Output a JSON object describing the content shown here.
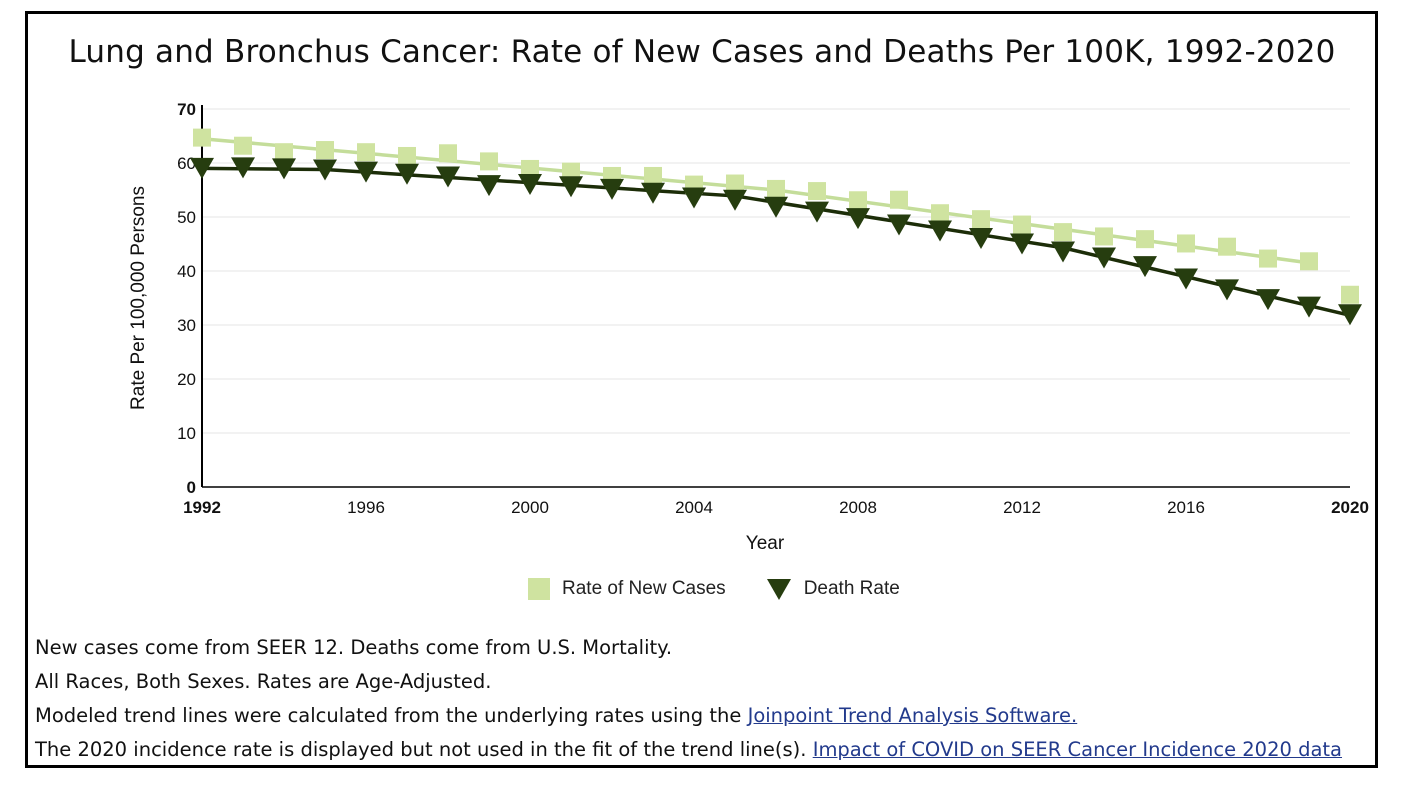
{
  "title": "Lung and Bronchus Cancer: Rate of New Cases and Deaths Per 100K, 1992-2020",
  "legend": {
    "new_cases": "Rate of New Cases",
    "deaths": "Death Rate"
  },
  "notes": [
    "New cases come from SEER 12. Deaths come from U.S. Mortality.",
    "All Races, Both Sexes. Rates are Age-Adjusted."
  ],
  "note3": {
    "text": "Modeled trend lines were calculated from the underlying rates using the ",
    "link": "Joinpoint Trend Analysis Software."
  },
  "note4": {
    "text": "The 2020 incidence rate is displayed but not used in the fit of the trend line(s). ",
    "link": "Impact of COVID on SEER Cancer Incidence 2020 data"
  },
  "colors": {
    "new_cases": "#cfe3a0",
    "new_cases_line": "#c4dd9a",
    "deaths": "#263d0f",
    "deaths_line": "#1c2d08",
    "axis": "#000000",
    "grid": "#e6e6e6"
  },
  "chart_data": {
    "type": "line",
    "xlabel": "Year",
    "ylabel": "Rate Per 100,000 Persons",
    "ylim": [
      0,
      70
    ],
    "xlim": [
      1992,
      2020
    ],
    "yticks": [
      0,
      10,
      20,
      30,
      40,
      50,
      60,
      70
    ],
    "xticks": [
      1992,
      1996,
      2000,
      2004,
      2008,
      2012,
      2016,
      2020
    ],
    "bold_ticks": [
      "0",
      "70",
      "1992",
      "2020"
    ],
    "grid": true,
    "legend_position": "bottom",
    "x": [
      1992,
      1993,
      1994,
      1995,
      1996,
      1997,
      1998,
      1999,
      2000,
      2001,
      2002,
      2003,
      2004,
      2005,
      2006,
      2007,
      2008,
      2009,
      2010,
      2011,
      2012,
      2013,
      2014,
      2015,
      2016,
      2017,
      2018,
      2019,
      2020
    ],
    "series": [
      {
        "name": "Rate of New Cases",
        "marker": "square",
        "values": [
          64.7,
          63.2,
          62.0,
          62.4,
          62.0,
          61.3,
          61.8,
          60.3,
          58.9,
          58.4,
          57.6,
          57.6,
          56.0,
          56.2,
          55.2,
          54.8,
          53.1,
          53.2,
          50.7,
          49.6,
          48.6,
          47.2,
          46.4,
          45.9,
          45.1,
          44.5,
          42.3,
          41.8,
          35.6
        ],
        "trend": [
          [
            1992,
            64.5
          ],
          [
            2006,
            55.0
          ],
          [
            2019,
            41.5
          ]
        ]
      },
      {
        "name": "Death Rate",
        "marker": "triangle-down",
        "values": [
          59.1,
          59.2,
          59.0,
          58.8,
          58.4,
          58.0,
          57.5,
          55.9,
          56.1,
          55.7,
          55.2,
          54.5,
          53.6,
          53.2,
          51.9,
          51.0,
          49.8,
          48.6,
          47.5,
          46.1,
          45.1,
          43.6,
          42.5,
          40.9,
          38.6,
          36.6,
          34.8,
          33.4,
          32.0
        ],
        "trend": [
          [
            1992,
            59.0
          ],
          [
            1995,
            58.8
          ],
          [
            2005,
            53.9
          ],
          [
            2013,
            44.3
          ],
          [
            2020,
            31.8
          ]
        ]
      }
    ]
  }
}
